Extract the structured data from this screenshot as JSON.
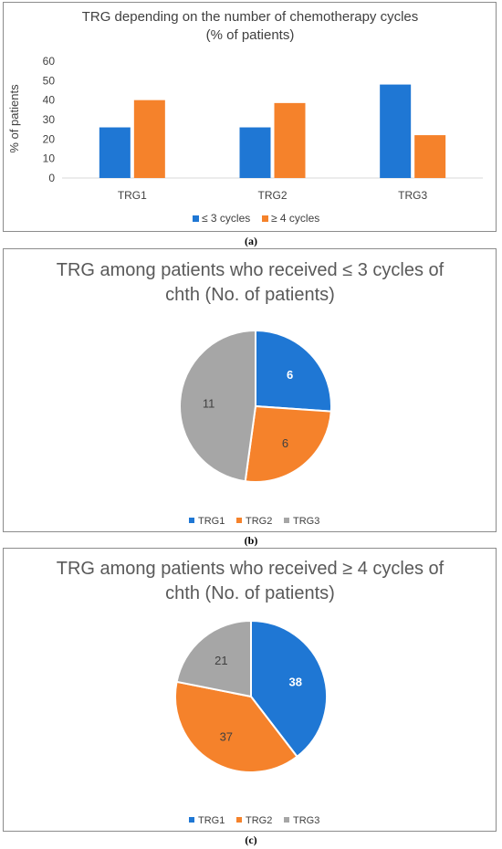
{
  "chart_data": [
    {
      "type": "bar",
      "title": "TRG depending on the number of chemotherapy cycles",
      "subtitle": "(% of patients)",
      "ylabel": "% of patients",
      "xlabel": "",
      "categories": [
        "TRG1",
        "TRG2",
        "TRG3"
      ],
      "yticks": [
        "0",
        "10",
        "20",
        "30",
        "40",
        "50",
        "60"
      ],
      "ylim": [
        0,
        60
      ],
      "grid": false,
      "legend": "bottom",
      "series": [
        {
          "name": "≤ 3 cycles",
          "color": "#1f77d4",
          "values": [
            26,
            26,
            48
          ]
        },
        {
          "name": "≥ 4 cycles",
          "color": "#f5822b",
          "values": [
            40,
            38.5,
            22
          ]
        }
      ],
      "caption": "(a)"
    },
    {
      "type": "pie",
      "title_line1": "TRG among patients who received ≤ 3 cycles of",
      "title_line2": "chth (No. of patients)",
      "labels": [
        "TRG1",
        "TRG2",
        "TRG3"
      ],
      "values": [
        6,
        6,
        11
      ],
      "value_labels": [
        "6",
        "6",
        "11"
      ],
      "colors": [
        "#1f77d4",
        "#f5822b",
        "#a6a6a6"
      ],
      "legend": "bottom",
      "caption": "(b)"
    },
    {
      "type": "pie",
      "title_line1": "TRG among patients who received ≥ 4 cycles of",
      "title_line2": "chth (No. of patients)",
      "labels": [
        "TRG1",
        "TRG2",
        "TRG3"
      ],
      "values": [
        38,
        37,
        21
      ],
      "value_labels": [
        "38",
        "37",
        "21"
      ],
      "colors": [
        "#1f77d4",
        "#f5822b",
        "#a6a6a6"
      ],
      "legend": "bottom",
      "caption": "(c)"
    }
  ]
}
